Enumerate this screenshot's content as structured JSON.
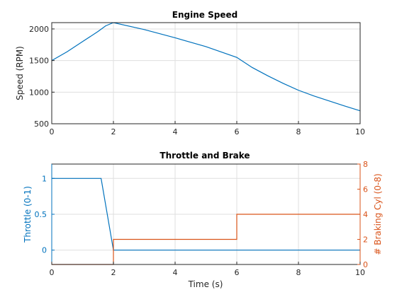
{
  "chart_data": [
    {
      "type": "line",
      "title": "Engine Speed",
      "xlabel": "",
      "ylabel": "Speed (RPM)",
      "xlim": [
        0,
        10
      ],
      "ylim": [
        500,
        2100
      ],
      "xticks": [
        "0",
        "2",
        "4",
        "6",
        "8",
        "10"
      ],
      "yticks": [
        "500",
        "1000",
        "1500",
        "2000"
      ],
      "grid": true,
      "series": [
        {
          "color": "#0072bd",
          "x": [
            0,
            0.5,
            1,
            1.5,
            1.75,
            2,
            3,
            4,
            5,
            6,
            6.5,
            7,
            7.5,
            8,
            8.5,
            9,
            9.5,
            10
          ],
          "y": [
            1500,
            1640,
            1800,
            1960,
            2050,
            2100,
            1990,
            1860,
            1720,
            1550,
            1390,
            1260,
            1140,
            1030,
            940,
            860,
            780,
            705
          ]
        }
      ]
    },
    {
      "type": "line",
      "title": "Throttle and Brake",
      "xlabel": "Time (s)",
      "xlim": [
        0,
        10
      ],
      "xticks": [
        "0",
        "2",
        "4",
        "6",
        "8",
        "10"
      ],
      "grid": true,
      "left_axis": {
        "ylabel": "Throttle (0-1)",
        "ylim": [
          -0.2,
          1.2
        ],
        "yticks": [
          "0",
          "0.5",
          "1"
        ],
        "color": "#0072bd"
      },
      "right_axis": {
        "ylabel": "# Braking Cyl (0-8)",
        "ylim": [
          0,
          8
        ],
        "yticks": [
          "0",
          "2",
          "4",
          "6",
          "8"
        ],
        "color": "#d95319"
      },
      "series": [
        {
          "axis": "left",
          "color": "#0072bd",
          "x": [
            0,
            1.6,
            2,
            10
          ],
          "y": [
            1,
            1,
            0,
            0
          ]
        },
        {
          "axis": "right",
          "color": "#d95319",
          "x": [
            0,
            2,
            2,
            6,
            6,
            10
          ],
          "y": [
            0,
            0,
            2,
            2,
            4,
            4
          ]
        }
      ]
    }
  ]
}
